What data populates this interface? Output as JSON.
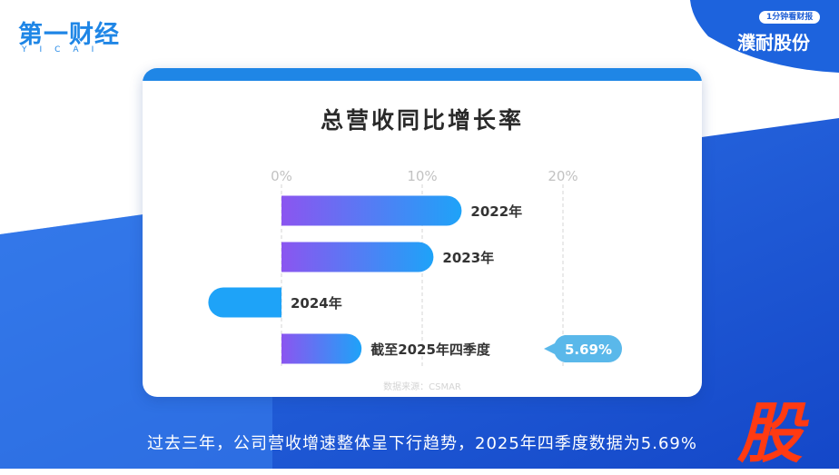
{
  "brand": {
    "logo_text": "第一财经",
    "logo_sub": "YICAI"
  },
  "corner": {
    "badge": "1分钟看财报",
    "title": "濮耐股份"
  },
  "source_text": "数据来源：CSMAR",
  "subtitle_text": "过去三年，公司营收增速整体呈下行趋势，2025年四季度数据为5.69%",
  "side_char": "股",
  "colors": {
    "accent": "#1f86e6",
    "bar_start": "#8b55f0",
    "bar_end": "#1ea3f8",
    "callout": "#5ab8ea",
    "highlight_char": "#ff3a12"
  },
  "chart_data": {
    "type": "bar",
    "orientation": "horizontal",
    "title": "总营收同比增长率",
    "categories": [
      "2022年",
      "2023年",
      "2024年",
      "截至2025年四季度"
    ],
    "values": [
      12.8,
      10.8,
      -5.2,
      5.69
    ],
    "value_labels": [
      "",
      "",
      "",
      "5.69%"
    ],
    "xlim": [
      -5.2,
      20
    ],
    "xticks": [
      0,
      10,
      20
    ],
    "xtick_labels": [
      "0%",
      "10%",
      "20%"
    ],
    "xlabel": "",
    "ylabel": "",
    "grid": "vertical-dashed",
    "legend": "none"
  }
}
